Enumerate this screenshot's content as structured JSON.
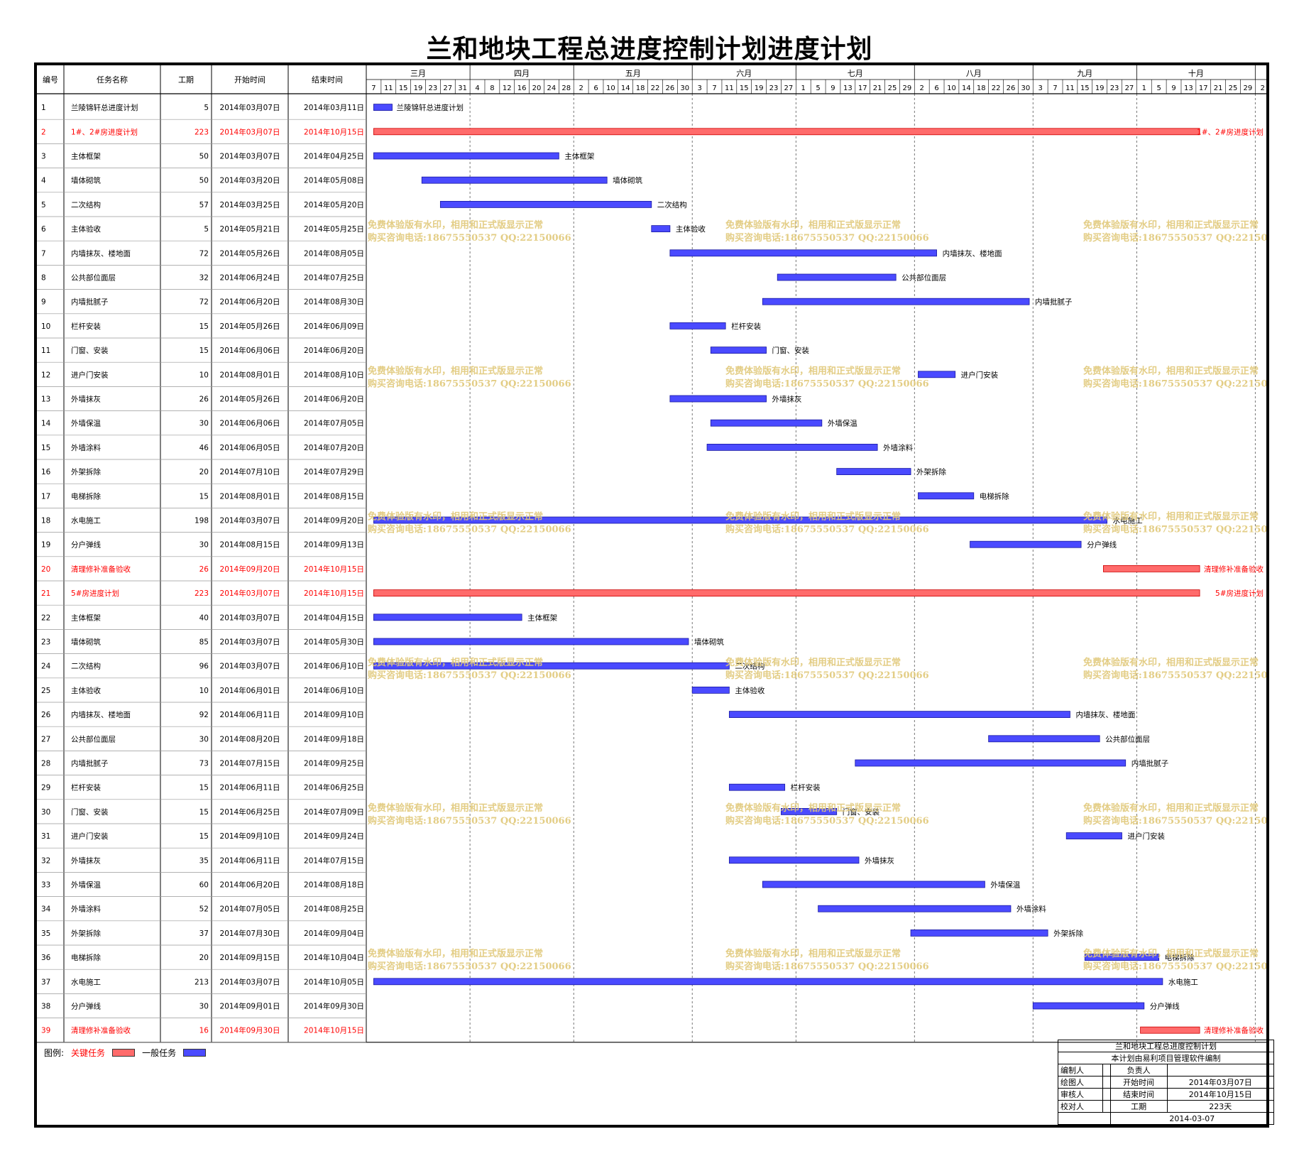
{
  "title": "兰和地块工程总进度控制计划进度计划",
  "columns": {
    "id": "编号",
    "name": "任务名称",
    "duration": "工期",
    "start": "开始时间",
    "end": "结束时间"
  },
  "months": [
    {
      "label": "三月",
      "days": [
        "7",
        "11",
        "15",
        "19",
        "23",
        "27",
        "31"
      ]
    },
    {
      "label": "四月",
      "days": [
        "4",
        "8",
        "12",
        "16",
        "20",
        "24",
        "28"
      ]
    },
    {
      "label": "五月",
      "days": [
        "2",
        "6",
        "10",
        "14",
        "18",
        "22",
        "26",
        "30"
      ]
    },
    {
      "label": "六月",
      "days": [
        "3",
        "7",
        "11",
        "15",
        "19",
        "23",
        "27"
      ]
    },
    {
      "label": "七月",
      "days": [
        "1",
        "5",
        "9",
        "13",
        "17",
        "21",
        "25",
        "29"
      ]
    },
    {
      "label": "八月",
      "days": [
        "2",
        "6",
        "10",
        "14",
        "18",
        "22",
        "26",
        "30"
      ]
    },
    {
      "label": "九月",
      "days": [
        "3",
        "7",
        "11",
        "15",
        "19",
        "23",
        "27"
      ]
    },
    {
      "label": "十月",
      "days": [
        "1",
        "5",
        "9",
        "13",
        "17",
        "21",
        "25",
        "29"
      ]
    },
    {
      "label": "",
      "days": [
        "2"
      ]
    }
  ],
  "chart_data": {
    "type": "gantt",
    "x_axis": {
      "start": "2014-03-05",
      "end": "2014-11-03",
      "tick_interval_days": 4
    },
    "tasks": [
      {
        "id": "1",
        "name": "兰陵锦轩总进度计划",
        "duration": 5,
        "start": "2014年03月07日",
        "end": "2014年03月11日",
        "critical": false,
        "bar_label": "兰陵锦轩总进度计划",
        "label_inside": true
      },
      {
        "id": "2",
        "name": "1#、2#房进度计划",
        "duration": 223,
        "start": "2014年03月07日",
        "end": "2014年10月15日",
        "critical": true,
        "bar_label": "1#、2#房进度计划"
      },
      {
        "id": "3",
        "name": "主体框架",
        "duration": 50,
        "start": "2014年03月07日",
        "end": "2014年04月25日",
        "critical": false,
        "bar_label": "主体框架"
      },
      {
        "id": "4",
        "name": "墙体砌筑",
        "duration": 50,
        "start": "2014年03月20日",
        "end": "2014年05月08日",
        "critical": false,
        "bar_label": "墙体砌筑"
      },
      {
        "id": "5",
        "name": "二次结构",
        "duration": 57,
        "start": "2014年03月25日",
        "end": "2014年05月20日",
        "critical": false,
        "bar_label": "二次结构"
      },
      {
        "id": "6",
        "name": "主体验收",
        "duration": 5,
        "start": "2014年05月21日",
        "end": "2014年05月25日",
        "critical": false,
        "bar_label": "主体验收"
      },
      {
        "id": "7",
        "name": "内墙抹灰、楼地面",
        "duration": 72,
        "start": "2014年05月26日",
        "end": "2014年08月05日",
        "critical": false,
        "bar_label": "内墙抹灰、楼地面"
      },
      {
        "id": "8",
        "name": "公共部位面层",
        "duration": 32,
        "start": "2014年06月24日",
        "end": "2014年07月25日",
        "critical": false,
        "bar_label": "公共部位面层"
      },
      {
        "id": "9",
        "name": "内墙批腻子",
        "duration": 72,
        "start": "2014年06月20日",
        "end": "2014年08月30日",
        "critical": false,
        "bar_label": "内墙批腻子"
      },
      {
        "id": "10",
        "name": "栏杆安装",
        "duration": 15,
        "start": "2014年05月26日",
        "end": "2014年06月09日",
        "critical": false,
        "bar_label": "栏杆安装"
      },
      {
        "id": "11",
        "name": "门窗、安装",
        "duration": 15,
        "start": "2014年06月06日",
        "end": "2014年06月20日",
        "critical": false,
        "bar_label": "门窗、安装"
      },
      {
        "id": "12",
        "name": "进户门安装",
        "duration": 10,
        "start": "2014年08月01日",
        "end": "2014年08月10日",
        "critical": false,
        "bar_label": "进户门安装"
      },
      {
        "id": "13",
        "name": "外墙抹灰",
        "duration": 26,
        "start": "2014年05月26日",
        "end": "2014年06月20日",
        "critical": false,
        "bar_label": "外墙抹灰"
      },
      {
        "id": "14",
        "name": "外墙保温",
        "duration": 30,
        "start": "2014年06月06日",
        "end": "2014年07月05日",
        "critical": false,
        "bar_label": "外墙保温"
      },
      {
        "id": "15",
        "name": "外墙涂料",
        "duration": 46,
        "start": "2014年06月05日",
        "end": "2014年07月20日",
        "critical": false,
        "bar_label": "外墙涂料"
      },
      {
        "id": "16",
        "name": "外架拆除",
        "duration": 20,
        "start": "2014年07月10日",
        "end": "2014年07月29日",
        "critical": false,
        "bar_label": "外架拆除"
      },
      {
        "id": "17",
        "name": "电梯拆除",
        "duration": 15,
        "start": "2014年08月01日",
        "end": "2014年08月15日",
        "critical": false,
        "bar_label": "电梯拆除"
      },
      {
        "id": "18",
        "name": "水电施工",
        "duration": 198,
        "start": "2014年03月07日",
        "end": "2014年09月20日",
        "critical": false,
        "bar_label": "水电施工"
      },
      {
        "id": "19",
        "name": "分户弹线",
        "duration": 30,
        "start": "2014年08月15日",
        "end": "2014年09月13日",
        "critical": false,
        "bar_label": "分户弹线"
      },
      {
        "id": "20",
        "name": "清理修补准备验收",
        "duration": 26,
        "start": "2014年09月20日",
        "end": "2014年10月15日",
        "critical": true,
        "bar_label": "清理修补准备验收"
      },
      {
        "id": "21",
        "name": "5#房进度计划",
        "duration": 223,
        "start": "2014年03月07日",
        "end": "2014年10月15日",
        "critical": true,
        "bar_label": "5#房进度计划"
      },
      {
        "id": "22",
        "name": "主体框架",
        "duration": 40,
        "start": "2014年03月07日",
        "end": "2014年04月15日",
        "critical": false,
        "bar_label": "主体框架"
      },
      {
        "id": "23",
        "name": "墙体砌筑",
        "duration": 85,
        "start": "2014年03月07日",
        "end": "2014年05月30日",
        "critical": false,
        "bar_label": "墙体砌筑"
      },
      {
        "id": "24",
        "name": "二次结构",
        "duration": 96,
        "start": "2014年03月07日",
        "end": "2014年06月10日",
        "critical": false,
        "bar_label": "二次结构"
      },
      {
        "id": "25",
        "name": "主体验收",
        "duration": 10,
        "start": "2014年06月01日",
        "end": "2014年06月10日",
        "critical": false,
        "bar_label": "主体验收"
      },
      {
        "id": "26",
        "name": "内墙抹灰、楼地面",
        "duration": 92,
        "start": "2014年06月11日",
        "end": "2014年09月10日",
        "critical": false,
        "bar_label": "内墙抹灰、楼地面"
      },
      {
        "id": "27",
        "name": "公共部位面层",
        "duration": 30,
        "start": "2014年08月20日",
        "end": "2014年09月18日",
        "critical": false,
        "bar_label": "公共部位面层"
      },
      {
        "id": "28",
        "name": "内墙批腻子",
        "duration": 73,
        "start": "2014年07月15日",
        "end": "2014年09月25日",
        "critical": false,
        "bar_label": "内墙批腻子"
      },
      {
        "id": "29",
        "name": "栏杆安装",
        "duration": 15,
        "start": "2014年06月11日",
        "end": "2014年06月25日",
        "critical": false,
        "bar_label": "栏杆安装"
      },
      {
        "id": "30",
        "name": "门窗、安装",
        "duration": 15,
        "start": "2014年06月25日",
        "end": "2014年07月09日",
        "critical": false,
        "bar_label": "门窗、安装"
      },
      {
        "id": "31",
        "name": "进户门安装",
        "duration": 15,
        "start": "2014年09月10日",
        "end": "2014年09月24日",
        "critical": false,
        "bar_label": "进户门安装"
      },
      {
        "id": "32",
        "name": "外墙抹灰",
        "duration": 35,
        "start": "2014年06月11日",
        "end": "2014年07月15日",
        "critical": false,
        "bar_label": "外墙抹灰"
      },
      {
        "id": "33",
        "name": "外墙保温",
        "duration": 60,
        "start": "2014年06月20日",
        "end": "2014年08月18日",
        "critical": false,
        "bar_label": "外墙保温"
      },
      {
        "id": "34",
        "name": "外墙涂料",
        "duration": 52,
        "start": "2014年07月05日",
        "end": "2014年08月25日",
        "critical": false,
        "bar_label": "外墙涂料"
      },
      {
        "id": "35",
        "name": "外架拆除",
        "duration": 37,
        "start": "2014年07月30日",
        "end": "2014年09月04日",
        "critical": false,
        "bar_label": "外架拆除"
      },
      {
        "id": "36",
        "name": "电梯拆除",
        "duration": 20,
        "start": "2014年09月15日",
        "end": "2014年10月04日",
        "critical": false,
        "bar_label": "电梯拆除"
      },
      {
        "id": "37",
        "name": "水电施工",
        "duration": 213,
        "start": "2014年03月07日",
        "end": "2014年10月05日",
        "critical": false,
        "bar_label": "水电施工"
      },
      {
        "id": "38",
        "name": "分户弹线",
        "duration": 30,
        "start": "2014年09月01日",
        "end": "2014年09月30日",
        "critical": false,
        "bar_label": "分户弹线"
      },
      {
        "id": "39",
        "name": "清理修补准备验收",
        "duration": 16,
        "start": "2014年09月30日",
        "end": "2014年10月15日",
        "critical": true,
        "bar_label": "清理修补准备验收"
      }
    ]
  },
  "watermark": {
    "line1": "免费体验版有水印，相用和正式版显示正常",
    "line2": "购买咨询电话:18675550537 QQ:22150066"
  },
  "legend": {
    "prefix": "图例:",
    "critical_label": "关键任务",
    "normal_label": "一般任务"
  },
  "colors": {
    "critical_bar": "#ff6b6b",
    "normal_bar": "#4a4aff",
    "critical_text": "#ff0000",
    "watermark": "#e0c878"
  },
  "info_box": {
    "title": "兰和地块工程总进度控制计划",
    "subtitle": "本计划由易利项目管理软件编制",
    "rows": [
      {
        "label": "编制人",
        "value": "",
        "label2": "负责人",
        "value2": ""
      },
      {
        "label": "绘图人",
        "value": "",
        "label2": "开始时间",
        "value2": "2014年03月07日"
      },
      {
        "label": "审核人",
        "value": "",
        "label2": "结束时间",
        "value2": "2014年10月15日"
      },
      {
        "label": "校对人",
        "value": "",
        "label2": "工期",
        "value2": "223天"
      }
    ],
    "date": "2014-03-07"
  }
}
